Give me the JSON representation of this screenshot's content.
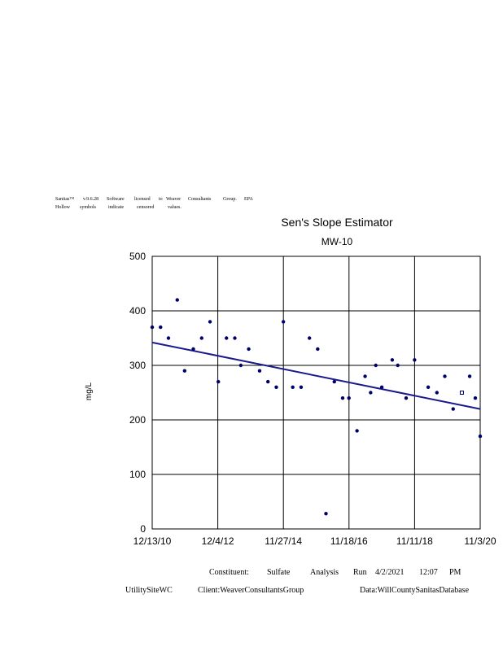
{
  "header_note": {
    "line1": [
      "Sanitas™",
      "v.9.6.28",
      "Software",
      "licensed",
      "to",
      "Weaver",
      "Consultants",
      "Group.",
      "EPA"
    ],
    "line2": [
      "Hollow",
      "symbols",
      "indicate",
      "censored",
      "values."
    ]
  },
  "chart_data": {
    "type": "scatter",
    "title": "Sen's Slope Estimator",
    "subtitle": "MW-10",
    "ylabel": "mg/L",
    "xlabel": "",
    "x_tick_labels": [
      "12/13/10",
      "12/4/12",
      "11/27/14",
      "11/18/16",
      "11/11/18",
      "11/3/20"
    ],
    "x_range": [
      "2010-12-13",
      "2020-11-03"
    ],
    "ylim": [
      0,
      500
    ],
    "y_ticks": [
      0,
      100,
      200,
      300,
      400,
      500
    ],
    "grid": true,
    "point_color": "#00006b",
    "trend_color": "#1a1a8c",
    "trend_line": {
      "x": [
        "2010-12-13",
        "2020-11-03"
      ],
      "y": [
        342,
        220
      ]
    },
    "points": [
      {
        "x": "2010-12-13",
        "y": 370,
        "censored": false
      },
      {
        "x": "2011-03-15",
        "y": 370,
        "censored": false
      },
      {
        "x": "2011-06-10",
        "y": 350,
        "censored": false
      },
      {
        "x": "2011-09-15",
        "y": 420,
        "censored": false
      },
      {
        "x": "2011-12-05",
        "y": 290,
        "censored": false
      },
      {
        "x": "2012-03-10",
        "y": 330,
        "censored": false
      },
      {
        "x": "2012-06-10",
        "y": 350,
        "censored": false
      },
      {
        "x": "2012-09-10",
        "y": 380,
        "censored": false
      },
      {
        "x": "2012-12-10",
        "y": 270,
        "censored": false
      },
      {
        "x": "2013-03-10",
        "y": 350,
        "censored": false
      },
      {
        "x": "2013-06-10",
        "y": 350,
        "censored": false
      },
      {
        "x": "2013-08-15",
        "y": 300,
        "censored": false
      },
      {
        "x": "2013-11-10",
        "y": 330,
        "censored": false
      },
      {
        "x": "2014-03-10",
        "y": 290,
        "censored": false
      },
      {
        "x": "2014-06-10",
        "y": 270,
        "censored": false
      },
      {
        "x": "2014-09-10",
        "y": 260,
        "censored": false
      },
      {
        "x": "2014-11-27",
        "y": 380,
        "censored": false
      },
      {
        "x": "2015-03-10",
        "y": 260,
        "censored": false
      },
      {
        "x": "2015-06-10",
        "y": 260,
        "censored": false
      },
      {
        "x": "2015-09-10",
        "y": 350,
        "censored": false
      },
      {
        "x": "2015-12-10",
        "y": 330,
        "censored": false
      },
      {
        "x": "2016-03-10",
        "y": 28,
        "censored": false
      },
      {
        "x": "2016-06-10",
        "y": 270,
        "censored": false
      },
      {
        "x": "2016-09-10",
        "y": 240,
        "censored": false
      },
      {
        "x": "2016-11-18",
        "y": 240,
        "censored": false
      },
      {
        "x": "2017-02-15",
        "y": 180,
        "censored": false
      },
      {
        "x": "2017-05-15",
        "y": 280,
        "censored": false
      },
      {
        "x": "2017-07-15",
        "y": 250,
        "censored": false
      },
      {
        "x": "2017-09-10",
        "y": 300,
        "censored": false
      },
      {
        "x": "2017-11-15",
        "y": 260,
        "censored": false
      },
      {
        "x": "2018-03-10",
        "y": 310,
        "censored": false
      },
      {
        "x": "2018-05-10",
        "y": 300,
        "censored": false
      },
      {
        "x": "2018-08-10",
        "y": 240,
        "censored": false
      },
      {
        "x": "2018-11-11",
        "y": 310,
        "censored": false
      },
      {
        "x": "2019-04-10",
        "y": 260,
        "censored": false
      },
      {
        "x": "2019-07-15",
        "y": 250,
        "censored": false
      },
      {
        "x": "2019-10-10",
        "y": 280,
        "censored": false
      },
      {
        "x": "2020-01-10",
        "y": 220,
        "censored": false
      },
      {
        "x": "2020-04-15",
        "y": 250,
        "censored": true
      },
      {
        "x": "2020-07-10",
        "y": 280,
        "censored": false
      },
      {
        "x": "2020-09-10",
        "y": 240,
        "censored": false
      },
      {
        "x": "2020-11-03",
        "y": 170,
        "censored": false
      }
    ]
  },
  "footer": {
    "constituent_label": "Constituent:",
    "constituent_value": "Sulfate",
    "analysis_label": "Analysis",
    "run_label": "Run",
    "run_date": "4/2/2021",
    "run_time": "12:07",
    "run_ampm": "PM",
    "site": "UtilitySiteWC",
    "client": "Client:WeaverConsultantsGroup",
    "database": "Data:WillCountySanitasDatabase"
  }
}
